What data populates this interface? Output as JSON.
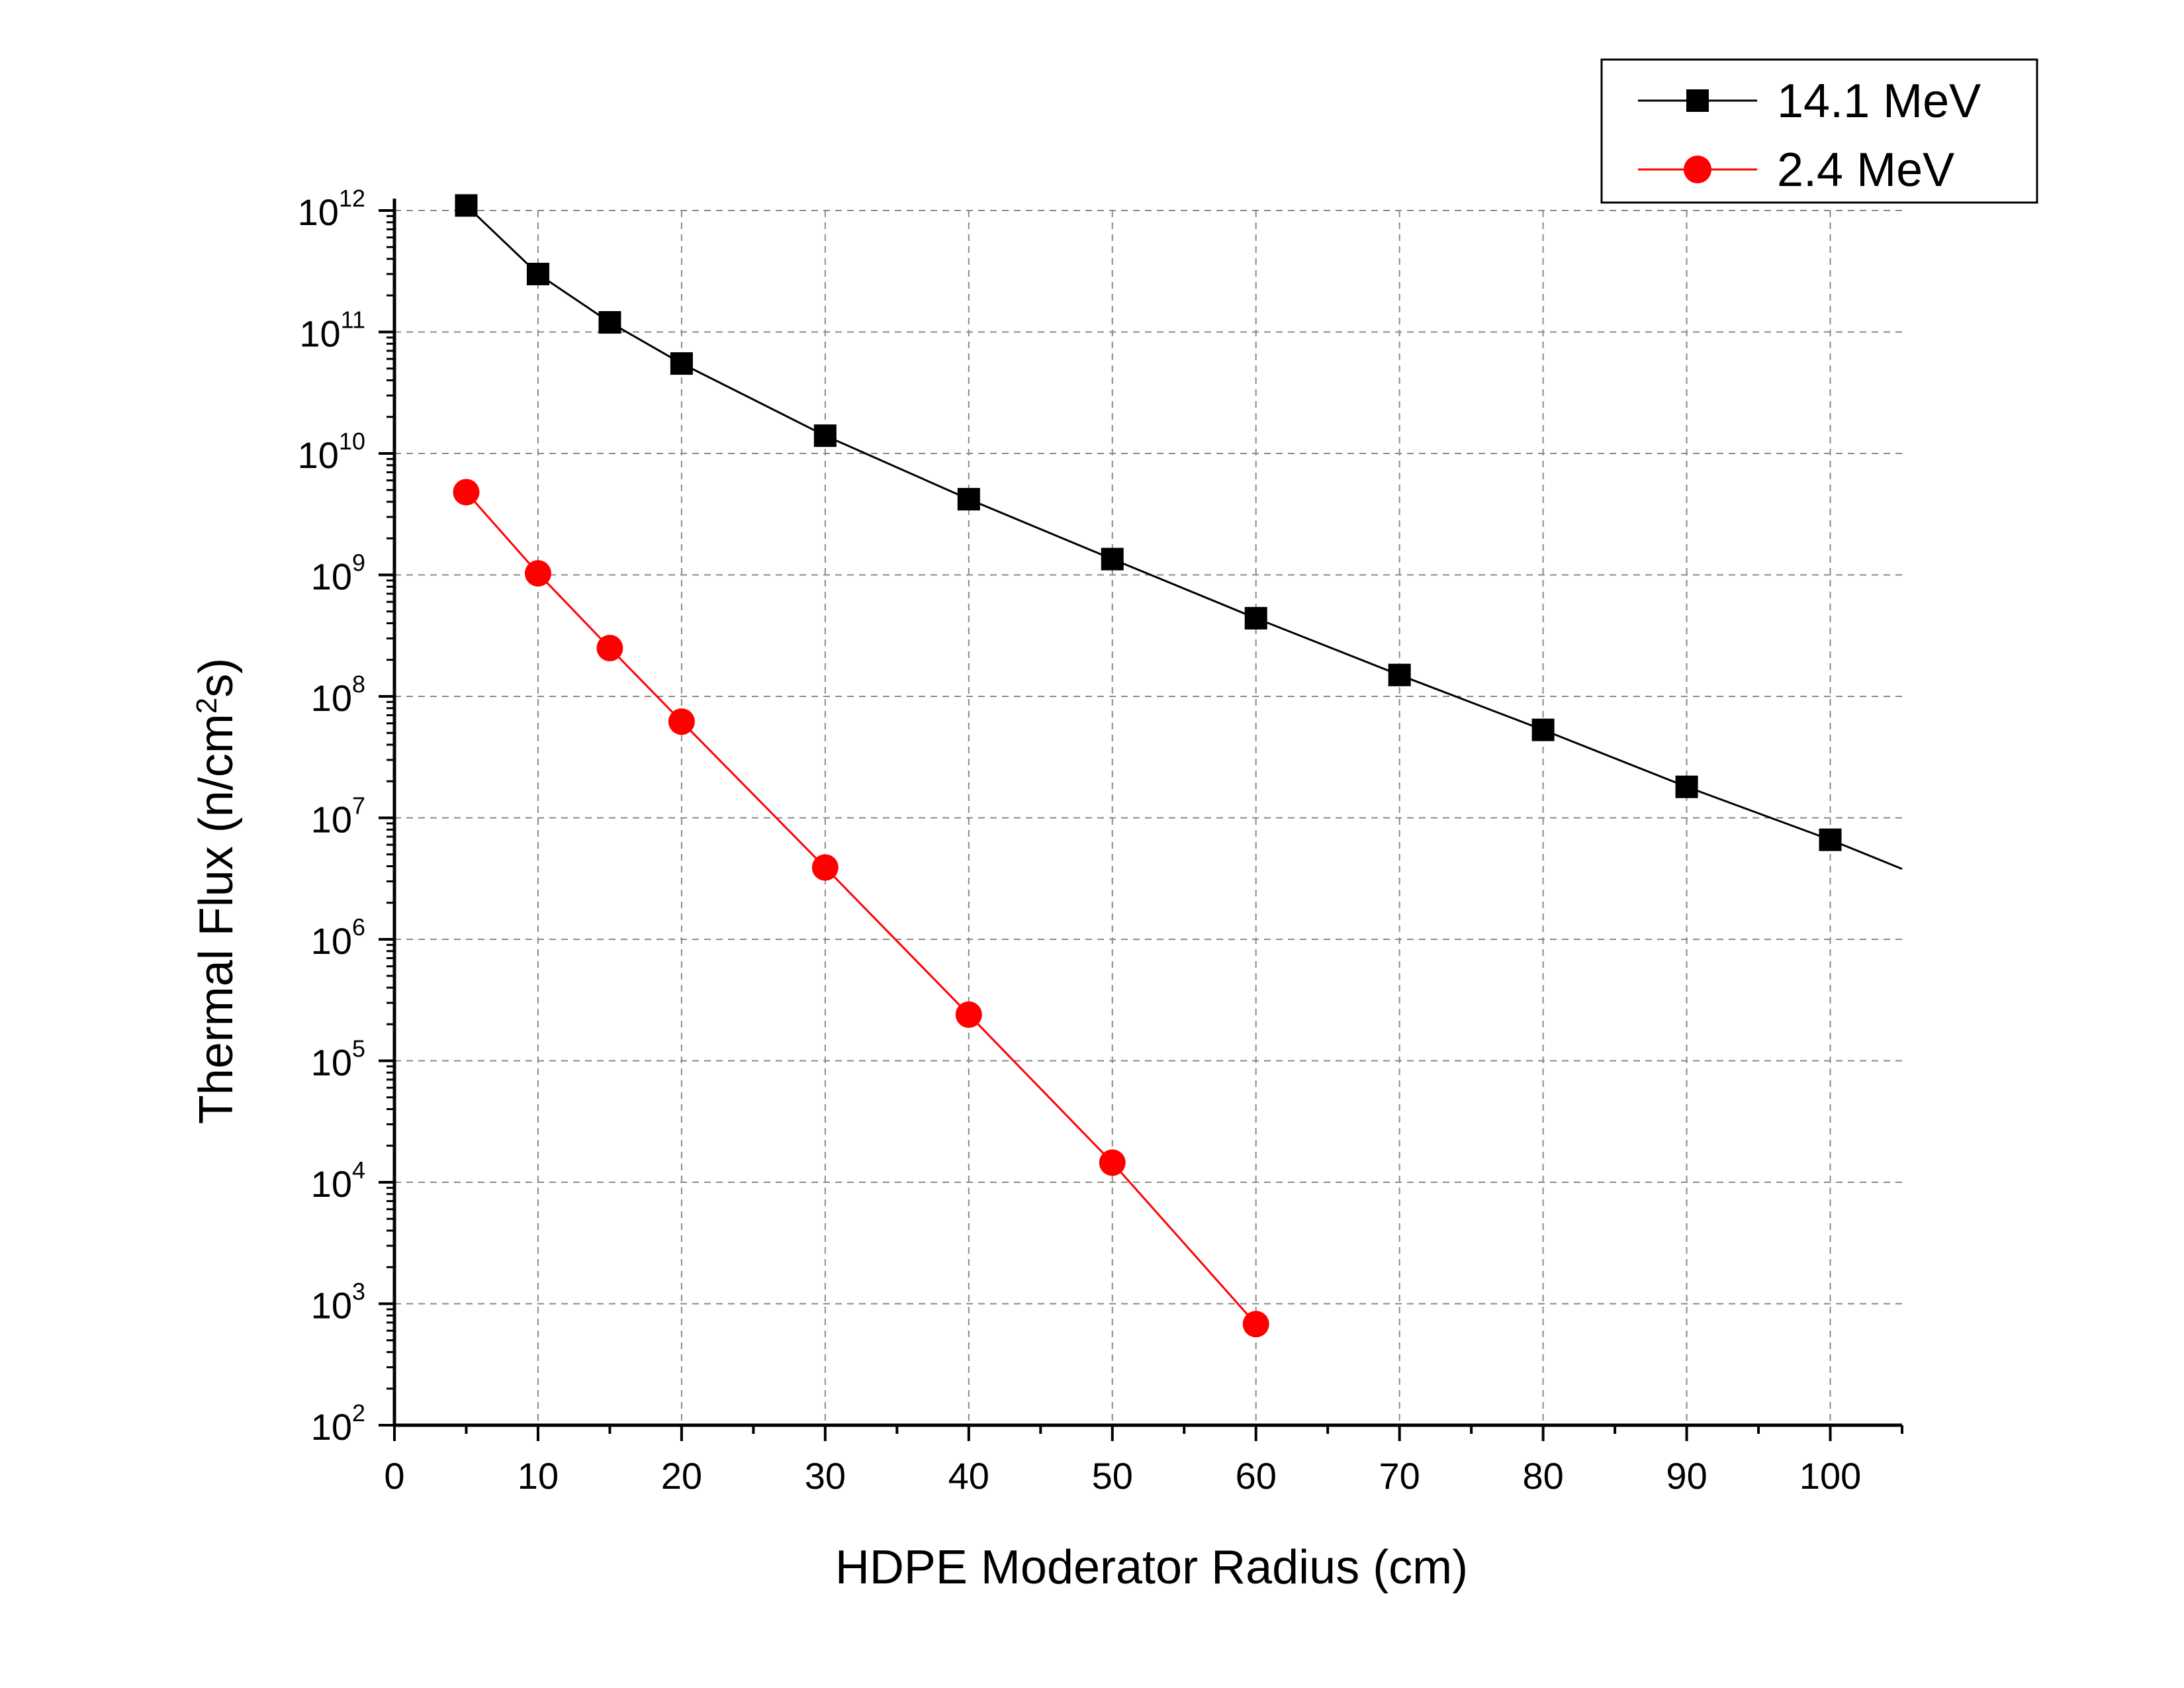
{
  "chart_data": {
    "type": "scatter",
    "xlabel": "HDPE Moderator Radius (cm)",
    "ylabel_main": "Thermal Flux (n/cm",
    "ylabel_sup": "2",
    "ylabel_end": "s)",
    "xlim": [
      0,
      105
    ],
    "ylim": [
      100,
      1000000000000
    ],
    "yscale": "log",
    "grid": true,
    "legend_position": "top-right",
    "x_ticks": [
      "0",
      "10",
      "20",
      "30",
      "40",
      "50",
      "60",
      "70",
      "80",
      "90",
      "100"
    ],
    "y_ticks": [
      {
        "base": "10",
        "exp": "2"
      },
      {
        "base": "10",
        "exp": "3"
      },
      {
        "base": "10",
        "exp": "4"
      },
      {
        "base": "10",
        "exp": "5"
      },
      {
        "base": "10",
        "exp": "6"
      },
      {
        "base": "10",
        "exp": "7"
      },
      {
        "base": "10",
        "exp": "8"
      },
      {
        "base": "10",
        "exp": "9"
      },
      {
        "base": "10",
        "exp": "10"
      },
      {
        "base": "10",
        "exp": "11"
      },
      {
        "base": "10",
        "exp": "12"
      }
    ],
    "series": [
      {
        "name": "14.1 MeV",
        "color": "#000000",
        "marker": "square",
        "x": [
          5,
          10,
          15,
          20,
          30,
          40,
          50,
          60,
          70,
          80,
          90,
          100
        ],
        "y": [
          1100000000000,
          300000000000,
          120000000000,
          55000000000,
          14000000000,
          4200000000,
          1350000000,
          440000000,
          150000000,
          53000000,
          18000000,
          6600000
        ],
        "line_extends_to_x": 105,
        "line_end_y": 3800000
      },
      {
        "name": "2.4 MeV",
        "color": "#ff0000",
        "marker": "circle",
        "x": [
          5,
          10,
          15,
          20,
          30,
          40,
          50,
          60
        ],
        "y": [
          4800000000,
          1030000000,
          250000000,
          62000000,
          3900000,
          240000,
          14500,
          680
        ]
      }
    ]
  }
}
